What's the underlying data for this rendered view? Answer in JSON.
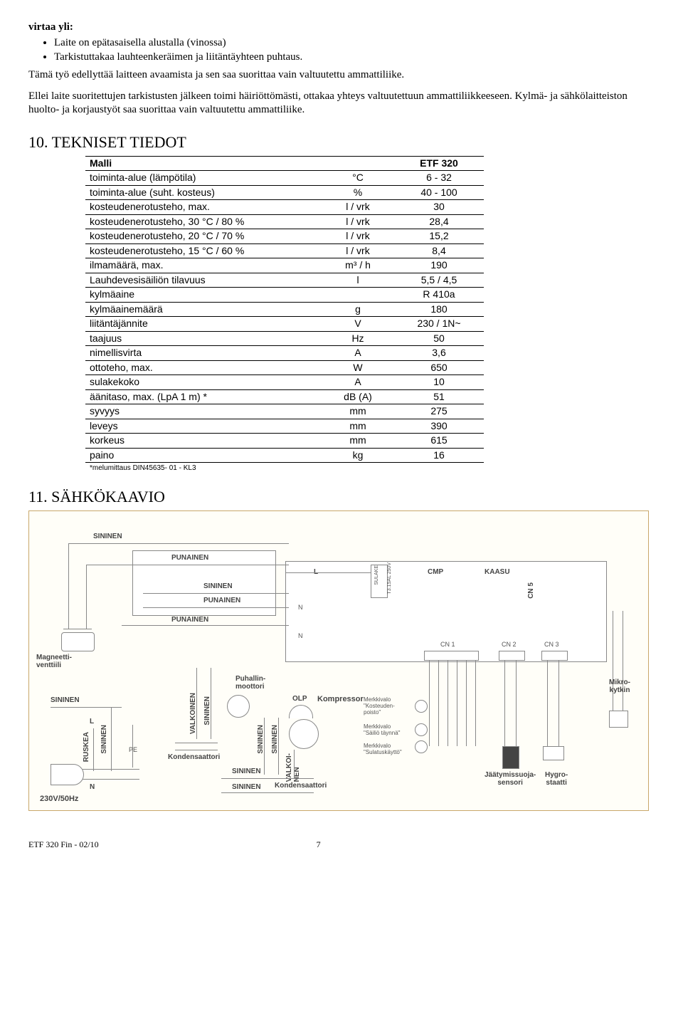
{
  "intro": {
    "heading": "virtaa yli:",
    "bullets": [
      "Laite on epätasaisella alustalla (vinossa)",
      "Tarkistuttakaa lauhteenkeräimen ja liitäntäyhteen puhtaus."
    ],
    "p1": "Tämä työ edellyttää laitteen avaamista ja sen saa suorittaa vain valtuutettu ammattiliike.",
    "p2": "Ellei laite suoritettujen tarkistusten jälkeen toimi häiriöttömästi, ottakaa yhteys valtuutettuun ammattiliikkeeseen. Kylmä- ja sähkölaitteiston huolto- ja korjaustyöt saa suorittaa vain valtuutettu ammattiliike."
  },
  "section10": {
    "title": "10. TEKNISET TIEDOT",
    "table_header": {
      "c1": "Malli",
      "c2": "",
      "c3": "ETF 320"
    },
    "rows": [
      {
        "c1": "toiminta-alue (lämpötila)",
        "c2": "°C",
        "c3": "6 - 32"
      },
      {
        "c1": "toiminta-alue (suht. kosteus)",
        "c2": "%",
        "c3": "40 - 100"
      },
      {
        "c1": "kosteudenerotusteho, max.",
        "c2": "l / vrk",
        "c3": "30"
      },
      {
        "c1": "kosteudenerotusteho, 30 °C / 80 %",
        "c2": "l / vrk",
        "c3": "28,4"
      },
      {
        "c1": "kosteudenerotusteho, 20 °C / 70 %",
        "c2": "l / vrk",
        "c3": "15,2"
      },
      {
        "c1": "kosteudenerotusteho, 15 °C / 60 %",
        "c2": "l / vrk",
        "c3": "8,4"
      },
      {
        "c1": "ilmamäärä, max.",
        "c2": "m³ / h",
        "c3": "190"
      },
      {
        "c1": "Lauhdevesisäiliön tilavuus",
        "c2": "l",
        "c3": "5,5 / 4,5"
      },
      {
        "c1": "kylmäaine",
        "c2": "",
        "c3": "R 410a"
      },
      {
        "c1": "kylmäainemäärä",
        "c2": "g",
        "c3": "180"
      },
      {
        "c1": "liitäntäjännite",
        "c2": "V",
        "c3": "230 / 1N~"
      },
      {
        "c1": "taajuus",
        "c2": "Hz",
        "c3": "50"
      },
      {
        "c1": "nimellisvirta",
        "c2": "A",
        "c3": "3,6"
      },
      {
        "c1": "ottoteho, max.",
        "c2": "W",
        "c3": "650"
      },
      {
        "c1": "sulakekoko",
        "c2": "A",
        "c3": "10"
      },
      {
        "c1": "äänitaso, max. (LpA 1 m) *",
        "c2": "dB (A)",
        "c3": "51"
      },
      {
        "c1": "syvyys",
        "c2": "mm",
        "c3": "275"
      },
      {
        "c1": "leveys",
        "c2": "mm",
        "c3": "390"
      },
      {
        "c1": "korkeus",
        "c2": "mm",
        "c3": "615"
      },
      {
        "c1": "paino",
        "c2": "kg",
        "c3": "16"
      }
    ],
    "footnote": "*melumittaus DIN45635- 01 - KL3"
  },
  "section11": {
    "title": "11. SÄHKÖKAAVIO"
  },
  "diagram": {
    "labels": {
      "sininen": "SININEN",
      "punainen": "PUNAINEN",
      "valkoinen": "VALKOINEN",
      "ruskea": "RUSKEA",
      "valkoinen_short": "VALKOI-\nNEN",
      "magneetti": "Magneetti-\nventtiili",
      "puhmot": "Puhallin-\nmoottori",
      "kondensat": "Kondensaattori",
      "kompressor": "Kompressor",
      "olp": "OLP",
      "sulake": "SULAKE",
      "sulake2": "T3.15AL 250V",
      "cmp": "CMP",
      "kaasu": "KAASU",
      "cn5": "CN 5",
      "cn1": "CN 1",
      "cn2": "CN 2",
      "cn3": "CN 3",
      "merkk1": "Merkkivalo\n\"Kosteuden-\npoisto\"",
      "merkk2": "Merkkivalo\n\"Säiliö täynnä\"",
      "merkk3": "Merkkivalo\n\"Sulatuskäyttö\"",
      "jaasensori": "Jäätymissuoja-\nsensori",
      "hygro": "Hygro-\nstaatti",
      "mikro": "Mikro-\nkytkin",
      "L": "L",
      "N": "N",
      "PE": "PE",
      "supply": "230V/50Hz"
    }
  },
  "footer": "ETF 320 Fin  -  02/10",
  "page": "7"
}
